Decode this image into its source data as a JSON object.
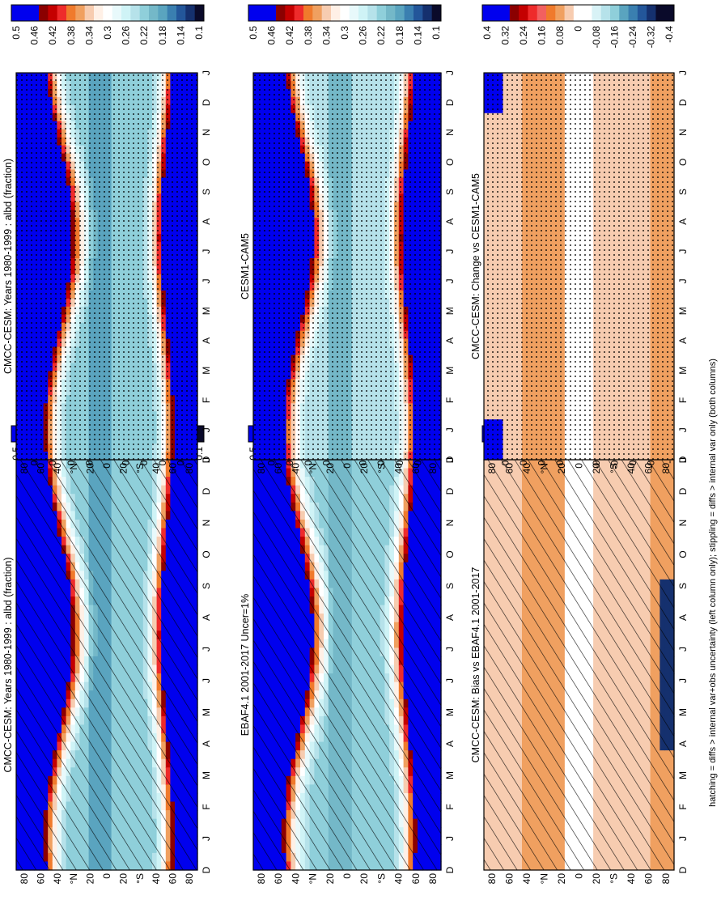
{
  "footer": "hatching = diffs > internal var+obs uncertainty (left column only); stippling = diffs > internal var only (both columns)",
  "months": [
    "D",
    "J",
    "F",
    "M",
    "A",
    "M",
    "J",
    "J",
    "A",
    "S",
    "O",
    "N",
    "D",
    "J"
  ],
  "lat_ticks": [
    "80",
    "60",
    "40",
    "°N",
    "20",
    "0",
    "20",
    "°S",
    "40",
    "60",
    "80"
  ],
  "cb_abs": [
    "0.5",
    "0.46",
    "0.42",
    "0.38",
    "0.34",
    "0.3",
    "0.26",
    "0.22",
    "0.18",
    "0.14",
    "0.1"
  ],
  "cb_diff": [
    "0.4",
    "0.32",
    "0.24",
    "0.16",
    "0.08",
    "0",
    "-0.08",
    "-0.16",
    "-0.24",
    "-0.32",
    "-0.4"
  ],
  "palettes": {
    "abs": [
      "#0000ee",
      "#0000ee",
      "#0000ee",
      "#8b0000",
      "#c40000",
      "#ee2b2b",
      "#f07a2c",
      "#f0a060",
      "#f7ccb0",
      "#fff0e6",
      "#ffffff",
      "#e8f9fb",
      "#cff3f6",
      "#b6e2ea",
      "#8fcfda",
      "#74b8c8",
      "#5aa4bf",
      "#3a7fb0",
      "#23569a",
      "#15306e",
      "#0a0a2a"
    ],
    "diff": [
      "#0000ee",
      "#0000ee",
      "#0000ee",
      "#8b0000",
      "#c40000",
      "#ee2b2b",
      "#f26060",
      "#f07a2c",
      "#f0a060",
      "#f7ccb0",
      "#ffffff",
      "#ffffff",
      "#d8f2f6",
      "#b6e2ea",
      "#8fcfda",
      "#5aa4bf",
      "#3a7fb0",
      "#23569a",
      "#15306e",
      "#0a0a2a",
      "#0a0a2a"
    ]
  },
  "chart_data": [
    {
      "type": "heatmap",
      "title": "CMCC-CESM: Years 1980-1999 : albd (fraction)",
      "colorbar": "abs",
      "field": "model",
      "overlay": "hatch"
    },
    {
      "type": "heatmap",
      "title": "CMCC-CESM: Years 1980-1999 : albd (fraction)",
      "colorbar": "abs",
      "field": "model",
      "overlay": "stipple"
    },
    {
      "type": "heatmap",
      "title": "EBAF4.1 2001-2017 Uncer=1%",
      "colorbar": "abs",
      "field": "obs",
      "overlay": "hatch"
    },
    {
      "type": "heatmap",
      "title": "CESM1-CAM5",
      "colorbar": "abs",
      "field": "ref",
      "overlay": "stipple"
    },
    {
      "type": "heatmap",
      "title": "CMCC-CESM: Bias vs EBAF4.1 2001-2017",
      "colorbar": "diff",
      "field": "bias",
      "overlay": "hatch"
    },
    {
      "type": "heatmap",
      "title": "CMCC-CESM: Change vs CESM1-CAM5",
      "colorbar": "diff",
      "field": "change",
      "overlay": "stipple"
    }
  ]
}
